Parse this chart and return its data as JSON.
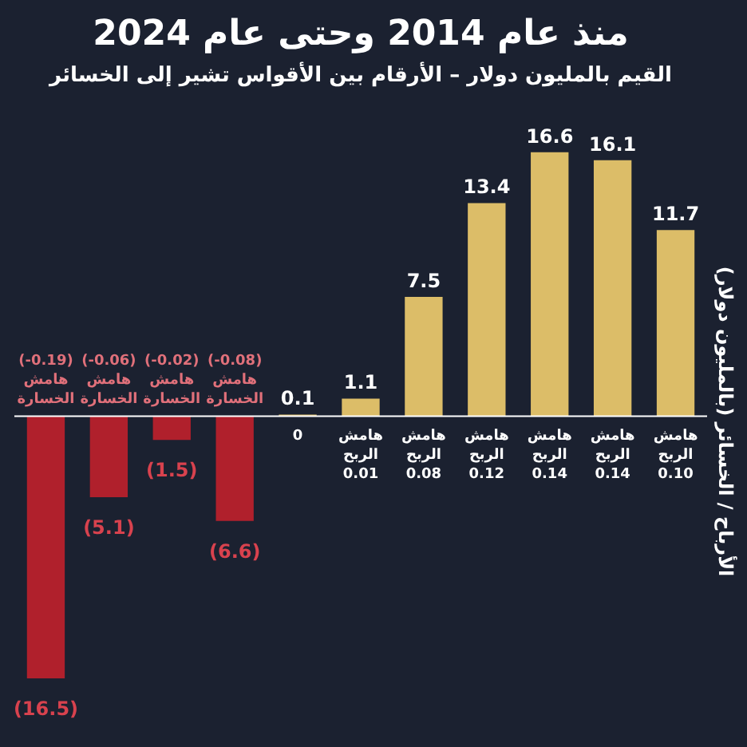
{
  "chart_data": {
    "type": "bar",
    "title": "منذ عام 2014 وحتى عام 2024",
    "subtitle": "القيم بالمليون دولار – الأرقام بين الأقواس تشير إلى الخسائر",
    "ylabel": "الأرباح / الخسائر (بالمليون دولار)",
    "categories": [
      "(-0.19) هامش الخسارة",
      "(-0.06) هامش الخسارة",
      "(-0.02) هامش الخسارة",
      "(-0.08) هامش الخسارة",
      "0",
      "هامش الربح 0.01",
      "هامش الربح 0.08",
      "هامش الربح 0.12",
      "هامش الربح 0.14",
      "هامش الربح 0.14",
      "هامش الربح 0.10"
    ],
    "values": [
      -16.5,
      -5.1,
      -1.5,
      -6.6,
      0.1,
      1.1,
      7.5,
      13.4,
      16.6,
      16.1,
      11.7
    ],
    "value_labels": [
      "(16.5)",
      "(5.1)",
      "(1.5)",
      "(6.6)",
      "0.1",
      "1.1",
      "7.5",
      "13.4",
      "16.6",
      "16.1",
      "11.7"
    ],
    "colors": [
      "#b0202c",
      "#b0202c",
      "#b0202c",
      "#b0202c",
      "#dcbd68",
      "#dcbd68",
      "#dcbd68",
      "#dcbd68",
      "#dcbd68",
      "#dcbd68",
      "#dcbd68"
    ],
    "relative": false,
    "grid": false
  }
}
